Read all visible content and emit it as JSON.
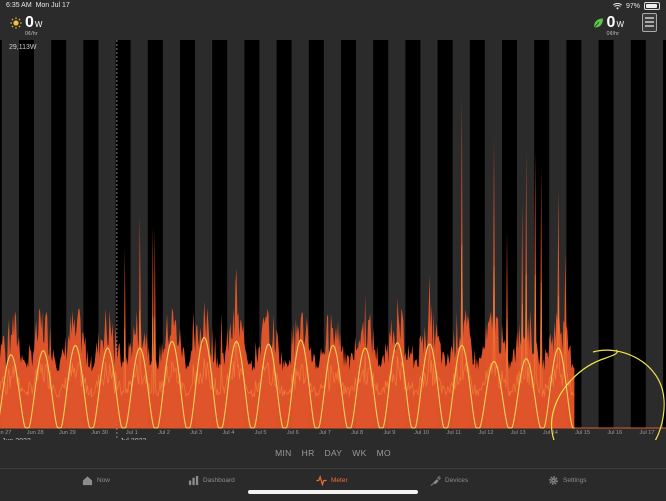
{
  "status_bar": {
    "time": "6:35 AM",
    "date": "Mon Jul 17",
    "battery": "97%"
  },
  "header": {
    "solar": {
      "value": "0",
      "unit": "W",
      "rate": "0¢/hr"
    },
    "grid": {
      "value": "0",
      "unit": "W",
      "rate": "0¢/hr"
    }
  },
  "chart": {
    "ymax_label": "29,113W",
    "month_labels": {
      "jun": "Jun 2023",
      "jul": "Jul 2023"
    }
  },
  "chart_data": {
    "type": "area",
    "y_max_label": "29,113W",
    "x_tick_labels": [
      "Jun 27",
      "Jun 28",
      "Jun 29",
      "Jun 30",
      "Jul 1",
      "Jul 2",
      "Jul 3",
      "Jul 4",
      "Jul 5",
      "Jul 6",
      "Jul 7",
      "Jul 8",
      "Jul 9",
      "Jul 10",
      "Jul 11",
      "Jul 12",
      "Jul 13",
      "Jul 14",
      "Jul 15",
      "Jul 16",
      "Jul 17"
    ],
    "series": [
      {
        "name": "",
        "color": "#f0602a",
        "daily_peak_w": [
          7000,
          6500,
          6800,
          6200,
          16000,
          9000,
          9500,
          12000,
          8500,
          8200,
          7500,
          10000,
          9800,
          11500,
          25000,
          22000,
          21000,
          18000,
          0,
          0,
          0
        ]
      },
      {
        "name": "",
        "color": "#f2d05a",
        "daily_peak_w": [
          5500,
          5800,
          6200,
          6000,
          6000,
          6500,
          6800,
          6500,
          6300,
          6600,
          6200,
          6000,
          6400,
          6300,
          6200,
          5000,
          5200,
          6000,
          0,
          0,
          0
        ]
      }
    ],
    "night_shading": true,
    "colors": {
      "consumption": "#f0602a",
      "solar": "#f2d05a",
      "background": "#2b2b2b",
      "night": "#000000"
    }
  },
  "range_buttons": [
    "MIN",
    "HR",
    "DAY",
    "WK",
    "MO"
  ],
  "tabs": [
    {
      "label": "Now",
      "icon": "house-icon",
      "active": false
    },
    {
      "label": "Dashboard",
      "icon": "bar-chart-icon",
      "active": false
    },
    {
      "label": "Meter",
      "icon": "pulse-icon",
      "active": true
    },
    {
      "label": "Devices",
      "icon": "plug-icon",
      "active": false
    },
    {
      "label": "Settings",
      "icon": "gear-icon",
      "active": false
    }
  ]
}
